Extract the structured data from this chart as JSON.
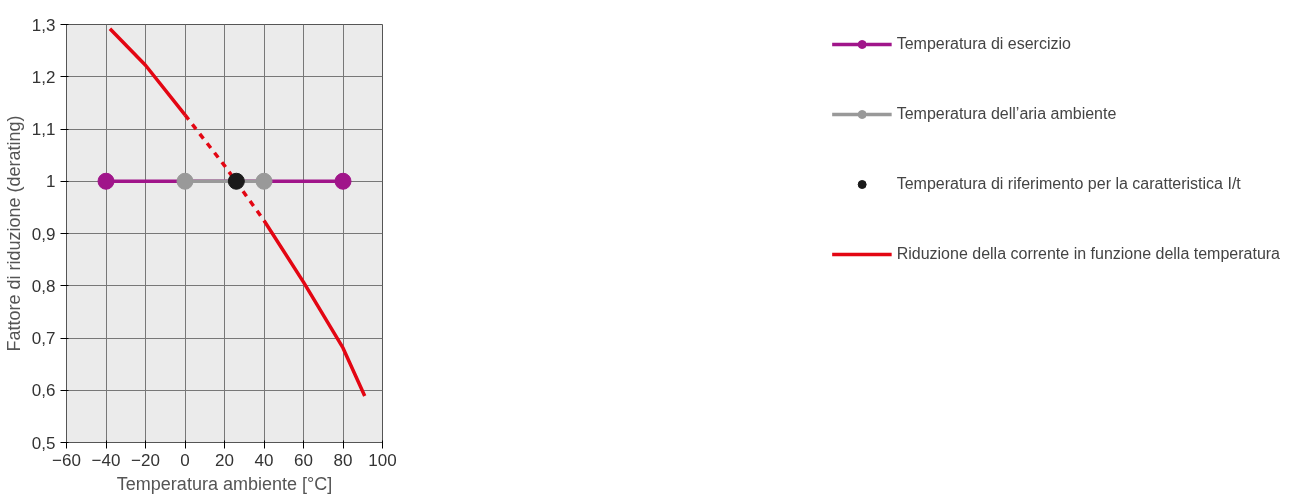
{
  "chart_data": {
    "type": "line",
    "xlabel": "Temperatura ambiente [°C]",
    "ylabel": "Fattore di riduzione (derating)",
    "xlim": [
      -60,
      100
    ],
    "xticks": [
      -60,
      -40,
      -20,
      0,
      20,
      40,
      60,
      80,
      100
    ],
    "ylim": [
      0.5,
      1.3
    ],
    "yticks": [
      {
        "value": 0.5,
        "label": "0,5"
      },
      {
        "value": 0.6,
        "label": "0,6"
      },
      {
        "value": 0.7,
        "label": "0,7"
      },
      {
        "value": 0.8,
        "label": "0,8"
      },
      {
        "value": 0.9,
        "label": "0,9"
      },
      1,
      {
        "value": 1.1,
        "label": "1,1"
      },
      {
        "value": 1.2,
        "label": "1,2"
      },
      {
        "value": 1.3,
        "label": "1,3"
      }
    ],
    "grid": true,
    "legend": "right",
    "series": [
      {
        "name": "Temperatura di esercizio",
        "marker": "circle",
        "color": "#a0158a",
        "x": [
          -40,
          80
        ],
        "values": [
          1,
          1
        ]
      },
      {
        "name": "Temperatura dell’aria ambiente",
        "marker": "circle",
        "color": "#999999",
        "x": [
          0,
          40
        ],
        "values": [
          1,
          1
        ]
      },
      {
        "name": "Temperatura di riferimento per la caratteristica I/t",
        "type": "scatter",
        "marker": "circle",
        "color": "#1a1a1a",
        "x": [
          26
        ],
        "values": [
          1
        ]
      },
      {
        "name": "Riduzione della corrente in funzione della temperatura",
        "marker": "none",
        "line_style": "solid",
        "color": "#e30613",
        "x": [
          -38,
          -20,
          0
        ],
        "values": [
          1.292,
          1.222,
          1.127
        ]
      },
      {
        "marker": "none",
        "line_style": "dashed",
        "color": "#e30613",
        "x": [
          0,
          20,
          40
        ],
        "values": [
          1.127,
          1.03,
          0.925
        ]
      },
      {
        "marker": "none",
        "line_style": "solid",
        "color": "#e30613",
        "x": [
          40,
          60,
          80,
          91
        ],
        "values": [
          0.925,
          0.807,
          0.681,
          0.589
        ]
      }
    ]
  }
}
